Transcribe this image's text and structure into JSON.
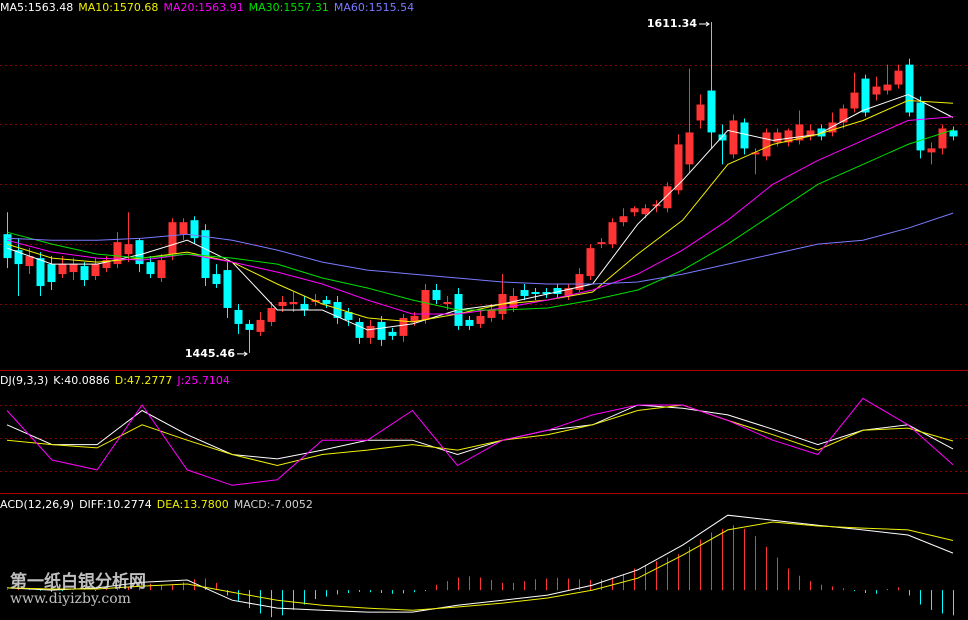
{
  "watermark": {
    "name": "第一纸白银分析网",
    "url": "www.diyizby.com"
  },
  "chart_data": [
    {
      "type": "candlestick",
      "open": [
        1505,
        1497,
        1489,
        1493,
        1490,
        1485,
        1486,
        1489,
        1484,
        1488,
        1490,
        1495,
        1502,
        1491,
        1483,
        1495,
        1505,
        1512,
        1507,
        1485,
        1487,
        1467,
        1460,
        1456,
        1461,
        1469,
        1470,
        1470,
        1471,
        1472,
        1471,
        1466,
        1461,
        1453,
        1461,
        1456,
        1454,
        1461,
        1462,
        1477,
        1470,
        1475,
        1462,
        1460,
        1463,
        1465,
        1468,
        1477,
        1476,
        1476,
        1478,
        1474,
        1477,
        1484,
        1500,
        1500,
        1511,
        1516,
        1515,
        1519,
        1518,
        1527,
        1540,
        1562,
        1577,
        1555,
        1545,
        1561,
        1545,
        1544,
        1551,
        1551,
        1552,
        1554,
        1558,
        1556,
        1561,
        1568,
        1583,
        1575,
        1577,
        1580,
        1590,
        1571,
        1546,
        1548,
        1557
      ],
      "close": [
        1493,
        1490,
        1494,
        1479,
        1481,
        1490,
        1490,
        1482,
        1490,
        1492,
        1501,
        1500,
        1490,
        1485,
        1492,
        1511,
        1511,
        1503,
        1483,
        1480,
        1468,
        1460,
        1457,
        1462,
        1468,
        1471,
        1471,
        1467,
        1472,
        1470,
        1463,
        1462,
        1453,
        1459,
        1452,
        1454,
        1463,
        1464,
        1477,
        1472,
        1471,
        1459,
        1459,
        1464,
        1467,
        1475,
        1474,
        1474,
        1475,
        1475,
        1475,
        1478,
        1485,
        1498,
        1501,
        1511,
        1514,
        1518,
        1518,
        1520,
        1529,
        1550,
        1556,
        1570,
        1556,
        1552,
        1562,
        1548,
        1546,
        1556,
        1556,
        1557,
        1560,
        1557,
        1554,
        1561,
        1568,
        1576,
        1566,
        1579,
        1580,
        1587,
        1566,
        1547,
        1548,
        1558,
        1554
      ],
      "high": [
        1516,
        1503,
        1498,
        1496,
        1494,
        1494,
        1493,
        1491,
        1493,
        1494,
        1506,
        1516,
        1503,
        1494,
        1495,
        1513,
        1513,
        1514,
        1510,
        1490,
        1491,
        1470,
        1462,
        1466,
        1471,
        1474,
        1476,
        1474,
        1475,
        1474,
        1474,
        1468,
        1463,
        1462,
        1464,
        1458,
        1465,
        1466,
        1480,
        1480,
        1474,
        1478,
        1464,
        1467,
        1470,
        1485,
        1478,
        1480,
        1478,
        1478,
        1480,
        1480,
        1488,
        1500,
        1503,
        1513,
        1518,
        1519,
        1520,
        1522,
        1531,
        1555,
        1588,
        1575,
        1611.34,
        1560,
        1565,
        1563,
        1548,
        1558,
        1558,
        1558,
        1567,
        1560,
        1560,
        1566,
        1570,
        1586,
        1585,
        1584,
        1590,
        1590,
        1593,
        1574,
        1551,
        1560,
        1559
      ],
      "low": [
        1488,
        1474,
        1485,
        1474,
        1477,
        1483,
        1482,
        1479,
        1482,
        1486,
        1488,
        1491,
        1486,
        1483,
        1481,
        1492,
        1502,
        1500,
        1479,
        1478,
        1463,
        1455,
        1445.46,
        1454,
        1459,
        1466,
        1466,
        1464,
        1469,
        1468,
        1460,
        1459,
        1450,
        1450,
        1449,
        1452,
        1451,
        1459,
        1460,
        1470,
        1467,
        1457,
        1457,
        1458,
        1461,
        1462,
        1466,
        1472,
        1472,
        1473,
        1473,
        1472,
        1476,
        1482,
        1498,
        1498,
        1509,
        1514,
        1513,
        1516,
        1516,
        1525,
        1536,
        1558,
        1548,
        1540,
        1543,
        1545,
        1535,
        1542,
        1549,
        1549,
        1550,
        1552,
        1552,
        1554,
        1558,
        1566,
        1564,
        1572,
        1575,
        1578,
        1564,
        1543,
        1540,
        1545,
        1552
      ],
      "up_color": "#ff3535",
      "down_color": "#00ffff",
      "ylim": [
        1436.9,
        1622.4
      ],
      "yticks": [
        1470,
        1500,
        1530,
        1560,
        1590
      ],
      "grid": true,
      "series": [
        {
          "label": "MA5:1563.48",
          "color": "#ffffff",
          "values": [
            1498,
            1490,
            1490,
            1495,
            1502,
            1491,
            1467,
            1467,
            1457,
            1460,
            1467,
            1470,
            1475,
            1480,
            1510,
            1532,
            1557,
            1552,
            1555,
            1567,
            1575,
            1563.48
          ]
        },
        {
          "label": "MA10:1570.68",
          "color": "#f0f000",
          "values": [
            1500,
            1493,
            1491,
            1493,
            1496,
            1491,
            1480,
            1470,
            1463,
            1461,
            1465,
            1470,
            1472,
            1476,
            1495,
            1512,
            1540,
            1550,
            1555,
            1562,
            1572,
            1570.68
          ]
        },
        {
          "label": "MA20:1563.91",
          "color": "#ff00ff",
          "values": [
            1502,
            1496,
            1493,
            1492,
            1495,
            1491,
            1486,
            1480,
            1472,
            1465,
            1465,
            1468,
            1472,
            1477,
            1485,
            1497,
            1512,
            1530,
            1542,
            1552,
            1562,
            1563.91
          ]
        },
        {
          "label": "MA30:1557.31",
          "color": "#00e000",
          "values": [
            1506,
            1500,
            1495,
            1493,
            1495,
            1493,
            1490,
            1483,
            1478,
            1472,
            1467,
            1467,
            1468,
            1472,
            1477,
            1487,
            1500,
            1515,
            1530,
            1540,
            1550,
            1557.31
          ]
        },
        {
          "label": "MA60:1515.54",
          "color": "#7a7aff",
          "values": [
            1503,
            1502,
            1502,
            1503,
            1505,
            1502,
            1497,
            1491,
            1487,
            1485,
            1483,
            1481,
            1480,
            1480,
            1481,
            1485,
            1490,
            1495,
            1500,
            1502,
            1508,
            1515.54
          ]
        }
      ]
    },
    {
      "type": "line",
      "title": "DJ(9,3,3)",
      "ylim": [
        0,
        100
      ],
      "yticks": [
        20,
        50,
        80
      ],
      "grid": true,
      "series": [
        {
          "label": "K:40.0886",
          "color": "#ffffff",
          "values": [
            62,
            44,
            44,
            75,
            53,
            35,
            31,
            39,
            48,
            48,
            35,
            48,
            57,
            62,
            80,
            77,
            71,
            58,
            44,
            57,
            62,
            40.0886
          ]
        },
        {
          "label": "D:47.2777",
          "color": "#f0f000",
          "values": [
            48,
            44,
            41,
            62,
            48,
            35,
            25,
            35,
            39,
            44,
            39,
            48,
            53,
            62,
            75,
            80,
            66,
            53,
            39,
            57,
            59,
            47.2777
          ]
        },
        {
          "label": "J:25.7104",
          "color": "#ff00ff",
          "values": [
            75,
            30,
            21,
            80,
            21,
            7,
            12,
            48,
            48,
            75,
            25,
            48,
            57,
            71,
            80,
            80,
            66,
            48,
            35,
            86,
            62,
            25.7104
          ]
        }
      ]
    },
    {
      "type": "macd",
      "title": "ACD(12,26,9)",
      "ylim": [
        -8.3,
        26.4
      ],
      "series": [
        {
          "label": "DIFF:10.2774",
          "color": "#ffffff",
          "values": [
            0.6,
            0,
            0.6,
            2.2,
            2.8,
            -2.8,
            -5,
            -5.6,
            -6.1,
            -6.1,
            -4.2,
            -2.8,
            -1.4,
            1.4,
            5.6,
            12.5,
            20.8,
            19.4,
            18,
            16.7,
            15.3,
            10.2774
          ]
        },
        {
          "label": "DEA:13.7800",
          "color": "#f0f000",
          "values": [
            0.6,
            0.3,
            0.3,
            1.1,
            1.7,
            -0.6,
            -2.8,
            -4.2,
            -5,
            -5.6,
            -4.7,
            -3.6,
            -2.2,
            0,
            3.3,
            9.7,
            16.7,
            18.9,
            17.8,
            17.2,
            16.7,
            13.78
          ]
        }
      ],
      "histogram": {
        "label": "MACD:-7.0052",
        "up_color": "#ff3535",
        "down_color": "#00ffff",
        "values": [
          0.2,
          0.5,
          0.3,
          -0.2,
          -0.5,
          -0.3,
          0.2,
          0.1,
          -0.2,
          0.3,
          0.6,
          1.0,
          1.5,
          1.8,
          1.5,
          1.6,
          2.2,
          3.0,
          3.2,
          2.0,
          -1.5,
          -3.0,
          -5.0,
          -6.5,
          -7.5,
          -7.0,
          -5.5,
          -4.0,
          -2.5,
          -1.8,
          -1.2,
          -0.8,
          -0.5,
          -0.6,
          -0.8,
          -1.0,
          -0.9,
          -0.6,
          -0.3,
          1.5,
          2.5,
          3.5,
          3.8,
          3.5,
          2.8,
          2.0,
          2.0,
          2.5,
          3.0,
          3.2,
          3.4,
          3.2,
          3.0,
          2.8,
          3.0,
          3.5,
          4.5,
          6.0,
          7,
          8,
          9,
          10,
          12,
          14,
          16,
          17,
          18,
          17,
          15,
          12,
          9,
          6,
          4,
          2.5,
          1.5,
          1.0,
          0.5,
          -0.3,
          -0.8,
          -1.0,
          0.3,
          0.8,
          -1.5,
          -4.0,
          -5.5,
          -6.5,
          -7.0052
        ]
      }
    }
  ]
}
